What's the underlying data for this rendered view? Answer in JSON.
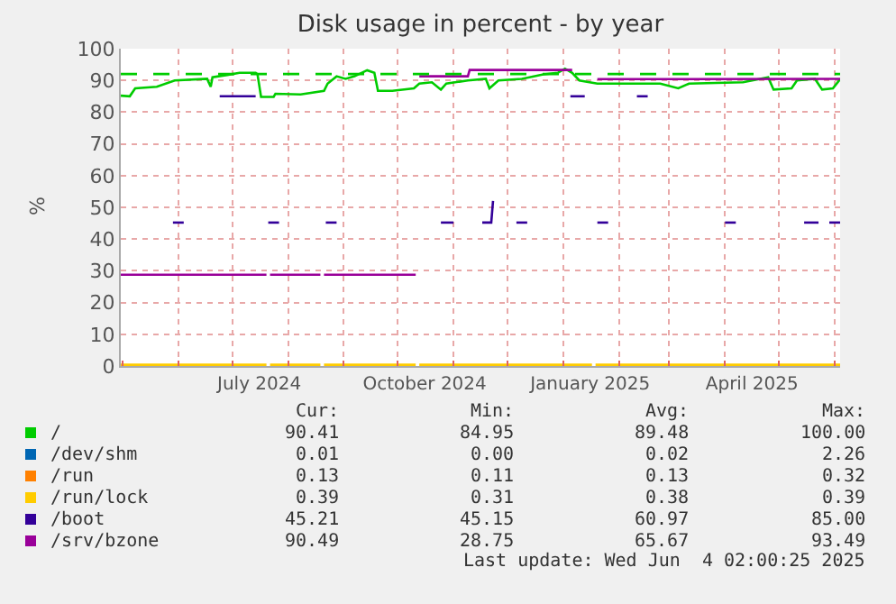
{
  "chart_data": {
    "type": "line",
    "title": "Disk usage in percent - by year",
    "ylabel": "%",
    "xlim": [
      "2024-04-30",
      "2025-06-04"
    ],
    "ylim": [
      0,
      100
    ],
    "yticks": [
      0,
      10,
      20,
      30,
      40,
      50,
      60,
      70,
      80,
      90,
      100
    ],
    "xticks": [
      {
        "value": "2024-07-16",
        "label": "July 2024"
      },
      {
        "value": "2024-10-16",
        "label": "October 2024"
      },
      {
        "value": "2025-01-16",
        "label": "January 2025"
      },
      {
        "value": "2025-04-16",
        "label": "April 2025"
      },
      {
        "value": "2024-05-01",
        "label": null
      },
      {
        "value": "2024-06-01",
        "label": null
      },
      {
        "value": "2024-07-01",
        "label": null
      },
      {
        "value": "2024-08-01",
        "label": null
      },
      {
        "value": "2024-09-01",
        "label": null
      },
      {
        "value": "2024-10-01",
        "label": null
      },
      {
        "value": "2024-11-01",
        "label": null
      },
      {
        "value": "2024-12-01",
        "label": null
      },
      {
        "value": "2025-01-01",
        "label": null
      },
      {
        "value": "2025-02-01",
        "label": null
      },
      {
        "value": "2025-03-01",
        "label": null
      },
      {
        "value": "2025-04-01",
        "label": null
      },
      {
        "value": "2025-05-01",
        "label": null
      },
      {
        "value": "2025-06-01",
        "label": null
      }
    ],
    "grid": true,
    "legend": "bottom",
    "marker": "none",
    "line_style": "solid",
    "ref_lines": [
      {
        "axis": "y",
        "value": 92,
        "color": "#00cc00",
        "line_style": "dashed"
      }
    ],
    "series": [
      {
        "name": "/",
        "color": "#00cc00",
        "x": [
          "2024-04-30",
          "2024-05-05",
          "2024-05-08",
          "2024-05-20",
          "2024-05-30",
          "2024-06-17",
          "2024-06-19",
          "2024-06-20",
          "2024-06-29",
          "2024-07-05",
          "2024-07-14",
          "2024-07-15",
          "2024-07-17",
          "2024-07-24",
          "2024-07-25",
          "2024-08-08",
          "2024-08-21",
          "2024-08-23",
          "2024-08-28",
          "2024-09-02",
          "2024-09-07",
          "2024-09-14",
          "2024-09-18",
          "2024-09-20",
          "2024-09-28",
          "2024-10-10",
          "2024-10-13",
          "2024-10-20",
          "2024-10-25",
          "2024-10-28",
          "2024-11-09",
          "2024-11-19",
          "2024-11-21",
          "2024-11-26",
          "2024-12-09",
          "2024-12-21",
          "2024-12-29",
          "2025-01-02",
          "2025-01-06",
          "2025-01-10",
          "2025-01-20",
          "2025-02-24",
          "2025-03-06",
          "2025-03-12",
          "2025-04-11",
          "2025-04-25",
          "2025-04-28",
          "2025-05-08",
          "2025-05-11",
          "2025-05-21",
          "2025-05-25",
          "2025-05-31",
          "2025-06-04"
        ],
        "values": [
          85.2,
          85,
          87.5,
          88,
          90,
          90.5,
          88,
          91,
          91.8,
          92.4,
          92.4,
          92,
          84.8,
          84.8,
          85.8,
          85.6,
          86.7,
          89,
          91.3,
          90.5,
          91.3,
          93.2,
          92.4,
          86.7,
          86.7,
          87.5,
          89,
          89.4,
          87.1,
          89,
          90,
          90.5,
          87.5,
          90,
          90.5,
          91.9,
          92.4,
          93.7,
          92.4,
          90,
          89,
          89,
          87.5,
          89,
          89.4,
          91,
          87.1,
          87.5,
          90,
          90.5,
          87.1,
          87.5,
          90.4
        ]
      },
      {
        "name": "/dev/shm",
        "color": "#0066b3"
      },
      {
        "name": "/run",
        "color": "#ff8000"
      },
      {
        "name": "/run/lock",
        "color": "#ffcc00",
        "x": [
          "2024-04-30",
          "2024-07-20",
          "2024-07-21",
          "2024-07-22",
          "2024-08-19",
          "2024-08-20",
          "2024-08-21",
          "2024-10-11",
          "2024-10-12",
          "2024-10-13",
          "2025-01-17",
          "2025-01-18",
          "2025-01-19",
          "2025-06-04"
        ],
        "values": [
          0.39,
          0.39,
          null,
          0.39,
          0.39,
          null,
          0.39,
          0.39,
          null,
          0.39,
          0.39,
          null,
          0.39,
          0.39
        ]
      },
      {
        "name": "/boot",
        "color": "#330099",
        "x": [
          "2024-05-29",
          "2024-06-04",
          "2024-06-10",
          "2024-06-24",
          "2024-07-14",
          "2024-07-18",
          "2024-07-21",
          "2024-07-27",
          "2024-08-10",
          "2024-08-22",
          "2024-08-28",
          "2024-09-30",
          "2024-10-25",
          "2024-11-01",
          "2024-11-10",
          "2024-11-17",
          "2024-11-22",
          "2024-11-23",
          "2024-12-01",
          "2024-12-06",
          "2024-12-12",
          "2024-12-25",
          "2025-01-05",
          "2025-01-13",
          "2025-01-17",
          "2025-01-20",
          "2025-01-26",
          "2025-02-05",
          "2025-02-11",
          "2025-02-17",
          "2025-03-10",
          "2025-04-01",
          "2025-04-07",
          "2025-04-20",
          "2025-05-15",
          "2025-05-23",
          "2025-05-26",
          "2025-05-29",
          "2025-06-04"
        ],
        "values": [
          45.2,
          45.2,
          null,
          85,
          85,
          null,
          45.2,
          45.2,
          null,
          45.2,
          45.2,
          null,
          45.2,
          45.2,
          null,
          45.2,
          45.2,
          52,
          null,
          45.2,
          45.2,
          null,
          85,
          85,
          null,
          45.2,
          45.2,
          null,
          85,
          85,
          null,
          45.2,
          45.2,
          null,
          45.2,
          45.2,
          null,
          45.21,
          45.21
        ]
      },
      {
        "name": "/srv/bzone",
        "color": "#990099",
        "x": [
          "2024-04-30",
          "2024-07-20",
          "2024-07-21",
          "2024-07-22",
          "2024-08-19",
          "2024-08-20",
          "2024-08-21",
          "2024-10-11",
          "2024-10-12",
          "2024-10-13",
          "2024-11-09",
          "2024-11-10",
          "2025-01-06",
          "2025-01-12",
          "2025-01-20",
          "2025-06-04"
        ],
        "values": [
          28.75,
          28.75,
          null,
          28.75,
          28.75,
          null,
          28.75,
          28.75,
          null,
          91.3,
          91.3,
          93.3,
          93.3,
          null,
          90.4,
          90.49
        ]
      }
    ],
    "annotations": [
      "Cur:",
      "Min:",
      "Avg:",
      "Max:",
      "90.41",
      "84.95",
      "89.48",
      "100.00",
      "0.01",
      "0.00",
      "0.02",
      "2.26",
      "0.13",
      "0.11",
      "0.13",
      "0.32",
      "0.39",
      "0.31",
      "0.38",
      "0.39",
      "45.21",
      "45.15",
      "60.97",
      "85.00",
      "90.49",
      "28.75",
      "65.67",
      "93.49",
      "Last update: Wed Jun  4 02:00:25 2025"
    ]
  }
}
